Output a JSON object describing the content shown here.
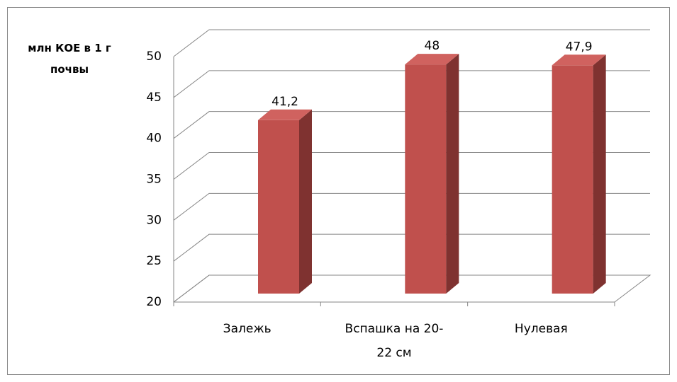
{
  "chart_data": {
    "type": "bar3d",
    "y_axis_label": "млн КОЕ в 1 г почвы",
    "categories": [
      "Залежь",
      "Вспашка на 20-22 см",
      "Нулевая"
    ],
    "values": [
      41.2,
      48,
      47.9
    ],
    "value_labels": [
      "41,2",
      "48",
      "47,9"
    ],
    "color": "#c0504d",
    "ylim": [
      20,
      50
    ],
    "yticks": [
      20,
      25,
      30,
      35,
      40,
      45,
      50
    ],
    "grid": true
  }
}
